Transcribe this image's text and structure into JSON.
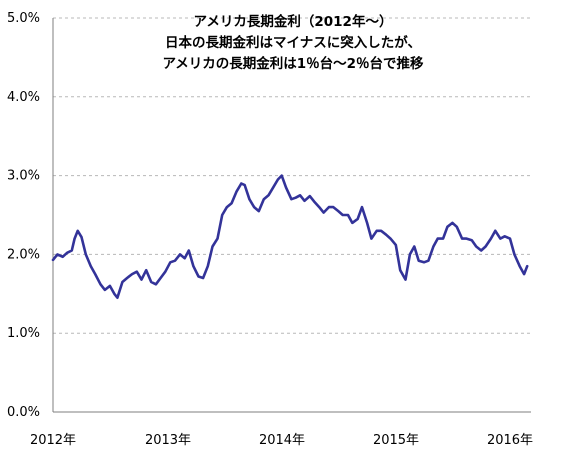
{
  "chart_data": {
    "type": "line",
    "title_lines": [
      "アメリカ長期金利（2012年～）",
      "日本の長期金利はマイナスに突入したが、",
      "アメリカの長期金利は1％台～2％台で推移"
    ],
    "y_tick_labels": [
      "0.0%",
      "1.0%",
      "2.0%",
      "3.0%",
      "4.0%",
      "5.0%"
    ],
    "x_tick_labels": [
      "2012年",
      "2013年",
      "2014年",
      "2015年",
      "2016年"
    ],
    "ylim": [
      0,
      5
    ],
    "xlim": [
      "2012-01-01",
      "2016-03-01"
    ],
    "y_unit": "%",
    "grid": "horizontal dashed",
    "line_color": "#333399",
    "series": [
      {
        "x": [
          "2012-01-01",
          "2012-01-15",
          "2012-02-01",
          "2012-02-15",
          "2012-03-01",
          "2012-03-10",
          "2012-03-20",
          "2012-04-01",
          "2012-04-15",
          "2012-05-01",
          "2012-05-15",
          "2012-06-01",
          "2012-06-15",
          "2012-07-01",
          "2012-07-15",
          "2012-07-25",
          "2012-08-10",
          "2012-08-25",
          "2012-09-10",
          "2012-09-25",
          "2012-10-10",
          "2012-10-25",
          "2012-11-10",
          "2012-11-25",
          "2012-12-10",
          "2012-12-25",
          "2013-01-10",
          "2013-01-25",
          "2013-02-10",
          "2013-02-25",
          "2013-03-10",
          "2013-03-25",
          "2013-04-10",
          "2013-04-25",
          "2013-05-10",
          "2013-05-25",
          "2013-06-10",
          "2013-06-25",
          "2013-07-10",
          "2013-07-25",
          "2013-08-10",
          "2013-08-25",
          "2013-09-05",
          "2013-09-20",
          "2013-10-05",
          "2013-10-20",
          "2013-11-05",
          "2013-11-20",
          "2013-12-05",
          "2013-12-20",
          "2014-01-01",
          "2014-01-15",
          "2014-02-01",
          "2014-02-15",
          "2014-03-01",
          "2014-03-15",
          "2014-04-01",
          "2014-04-15",
          "2014-05-01",
          "2014-05-15",
          "2014-06-01",
          "2014-06-15",
          "2014-07-01",
          "2014-07-15",
          "2014-08-01",
          "2014-08-15",
          "2014-09-01",
          "2014-09-15",
          "2014-10-01",
          "2014-10-15",
          "2014-11-01",
          "2014-11-15",
          "2014-12-01",
          "2014-12-15",
          "2015-01-01",
          "2015-01-15",
          "2015-02-01",
          "2015-02-15",
          "2015-03-01",
          "2015-03-15",
          "2015-04-01",
          "2015-04-15",
          "2015-05-01",
          "2015-05-15",
          "2015-06-01",
          "2015-06-15",
          "2015-07-01",
          "2015-07-15",
          "2015-08-01",
          "2015-08-15",
          "2015-09-01",
          "2015-09-15",
          "2015-10-01",
          "2015-10-15",
          "2015-11-01",
          "2015-11-15",
          "2015-12-01",
          "2015-12-15",
          "2016-01-01",
          "2016-01-15",
          "2016-02-01",
          "2016-02-15",
          "2016-02-25"
        ],
        "y": [
          1.93,
          2.0,
          1.97,
          2.02,
          2.05,
          2.2,
          2.3,
          2.22,
          2.0,
          1.85,
          1.75,
          1.62,
          1.55,
          1.6,
          1.5,
          1.45,
          1.65,
          1.7,
          1.75,
          1.78,
          1.68,
          1.8,
          1.65,
          1.62,
          1.7,
          1.78,
          1.9,
          1.92,
          2.0,
          1.95,
          2.05,
          1.85,
          1.72,
          1.7,
          1.85,
          2.1,
          2.2,
          2.5,
          2.6,
          2.65,
          2.8,
          2.9,
          2.88,
          2.7,
          2.6,
          2.55,
          2.7,
          2.75,
          2.85,
          2.95,
          3.0,
          2.85,
          2.7,
          2.72,
          2.75,
          2.68,
          2.74,
          2.67,
          2.6,
          2.53,
          2.6,
          2.6,
          2.55,
          2.5,
          2.5,
          2.4,
          2.45,
          2.6,
          2.4,
          2.2,
          2.3,
          2.3,
          2.25,
          2.2,
          2.12,
          1.8,
          1.68,
          2.0,
          2.1,
          1.92,
          1.9,
          1.92,
          2.1,
          2.2,
          2.2,
          2.35,
          2.4,
          2.35,
          2.2,
          2.2,
          2.18,
          2.1,
          2.05,
          2.1,
          2.2,
          2.3,
          2.2,
          2.23,
          2.2,
          2.0,
          1.85,
          1.75,
          1.85
        ]
      }
    ]
  }
}
